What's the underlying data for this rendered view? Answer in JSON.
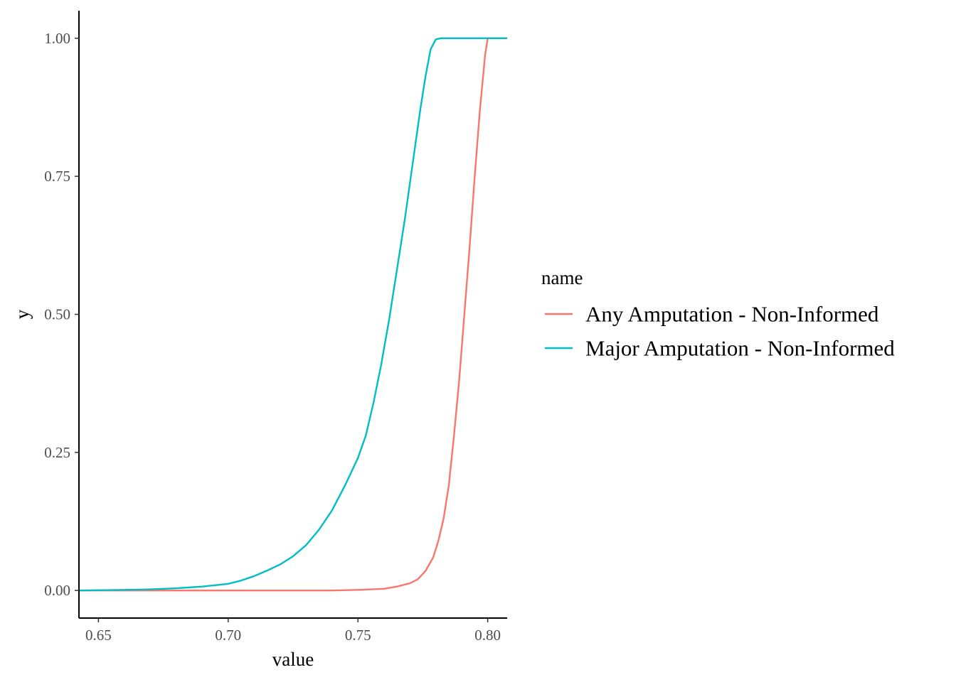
{
  "chart_data": {
    "type": "line",
    "title": "",
    "xlabel": "value",
    "ylabel": "y",
    "xlim": [
      0.6425,
      0.8075
    ],
    "ylim": [
      -0.05,
      1.05
    ],
    "x_ticks": [
      0.65,
      0.7,
      0.75,
      0.8
    ],
    "x_tick_labels": [
      "0.65",
      "0.70",
      "0.75",
      "0.80"
    ],
    "y_ticks": [
      0.0,
      0.25,
      0.5,
      0.75,
      1.0
    ],
    "y_tick_labels": [
      "0.00",
      "0.25",
      "0.50",
      "0.75",
      "1.00"
    ],
    "grid": false,
    "legend": {
      "title": "name",
      "position": "right"
    },
    "series": [
      {
        "name": "Any Amputation - Non-Informed",
        "color": "#F8766D",
        "points": [
          [
            0.6425,
            0.0
          ],
          [
            0.7,
            0.0
          ],
          [
            0.74,
            0.0
          ],
          [
            0.75,
            0.001
          ],
          [
            0.755,
            0.002
          ],
          [
            0.76,
            0.003
          ],
          [
            0.765,
            0.007
          ],
          [
            0.77,
            0.013
          ],
          [
            0.773,
            0.02
          ],
          [
            0.776,
            0.035
          ],
          [
            0.779,
            0.06
          ],
          [
            0.781,
            0.09
          ],
          [
            0.783,
            0.13
          ],
          [
            0.785,
            0.19
          ],
          [
            0.787,
            0.28
          ],
          [
            0.789,
            0.38
          ],
          [
            0.791,
            0.5
          ],
          [
            0.793,
            0.62
          ],
          [
            0.795,
            0.75
          ],
          [
            0.797,
            0.87
          ],
          [
            0.799,
            0.97
          ],
          [
            0.8,
            1.0
          ],
          [
            0.8075,
            1.0
          ]
        ]
      },
      {
        "name": "Major Amputation - Non-Informed",
        "color": "#00BFC4",
        "points": [
          [
            0.6425,
            0.0
          ],
          [
            0.66,
            0.001
          ],
          [
            0.67,
            0.002
          ],
          [
            0.68,
            0.004
          ],
          [
            0.69,
            0.007
          ],
          [
            0.7,
            0.012
          ],
          [
            0.705,
            0.018
          ],
          [
            0.71,
            0.026
          ],
          [
            0.715,
            0.036
          ],
          [
            0.72,
            0.047
          ],
          [
            0.725,
            0.062
          ],
          [
            0.73,
            0.082
          ],
          [
            0.735,
            0.11
          ],
          [
            0.74,
            0.145
          ],
          [
            0.745,
            0.19
          ],
          [
            0.75,
            0.24
          ],
          [
            0.753,
            0.28
          ],
          [
            0.756,
            0.34
          ],
          [
            0.759,
            0.41
          ],
          [
            0.762,
            0.49
          ],
          [
            0.765,
            0.58
          ],
          [
            0.768,
            0.67
          ],
          [
            0.771,
            0.77
          ],
          [
            0.774,
            0.87
          ],
          [
            0.776,
            0.93
          ],
          [
            0.778,
            0.98
          ],
          [
            0.78,
            0.998
          ],
          [
            0.782,
            1.0
          ],
          [
            0.8075,
            1.0
          ]
        ]
      }
    ]
  }
}
